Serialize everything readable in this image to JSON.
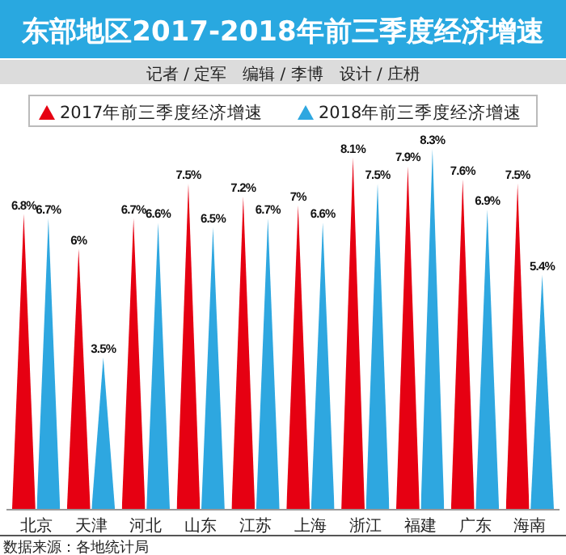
{
  "chart_data": {
    "type": "bar",
    "title": "东部地区2017-2018年前三季度经济增速",
    "subtitle": "记者 / 定军　编辑 / 李博　设计 / 庄枬",
    "categories": [
      "北京",
      "天津",
      "河北",
      "山东",
      "江苏",
      "上海",
      "浙江",
      "福建",
      "广东",
      "海南"
    ],
    "series": [
      {
        "name": "2017年前三季度经济增速",
        "color": "#e60012",
        "values": [
          6.8,
          6,
          6.7,
          7.5,
          7.2,
          7,
          8.1,
          7.9,
          7.6,
          7.5
        ],
        "value_labels": [
          "6.8%",
          "6%",
          "6.7%",
          "7.5%",
          "7.2%",
          "7%",
          "8.1%",
          "7.9%",
          "7.6%",
          "7.5%"
        ]
      },
      {
        "name": "2018年前三季度经济增速",
        "color": "#2ea7e0",
        "values": [
          6.7,
          3.5,
          6.6,
          6.5,
          6.7,
          6.6,
          7.5,
          8.3,
          6.9,
          5.4
        ],
        "value_labels": [
          "6.7%",
          "3.5%",
          "6.6%",
          "6.5%",
          "6.7%",
          "6.6%",
          "7.5%",
          "8.3%",
          "6.9%",
          "5.4%"
        ]
      }
    ],
    "legend": "top",
    "annotations": [
      "数据来源：各地统计局"
    ]
  }
}
